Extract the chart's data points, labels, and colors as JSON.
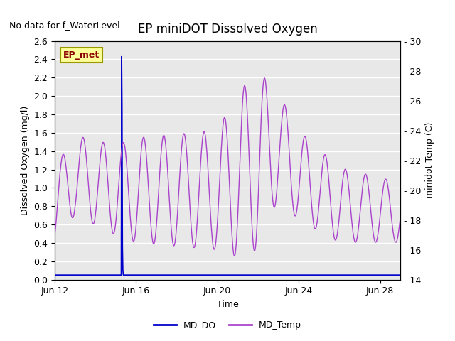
{
  "title": "EP miniDOT Dissolved Oxygen",
  "subtitle": "No data for f_WaterLevel",
  "xlabel": "Time",
  "ylabel_left": "Dissolved Oxygen (mg/l)",
  "ylabel_right": "minidot Temp (C)",
  "ylim_left": [
    0.0,
    2.6
  ],
  "ylim_right": [
    14,
    30
  ],
  "yticks_left": [
    0.0,
    0.2,
    0.4,
    0.6,
    0.8,
    1.0,
    1.2,
    1.4,
    1.6,
    1.8,
    2.0,
    2.2,
    2.4,
    2.6
  ],
  "yticks_right": [
    14,
    16,
    18,
    20,
    22,
    24,
    26,
    28,
    30
  ],
  "xtick_labels": [
    "Jun 12",
    "Jun 16",
    "Jun 20",
    "Jun 24",
    "Jun 28"
  ],
  "xtick_positions": [
    0,
    4,
    8,
    12,
    16
  ],
  "xlim": [
    0,
    17
  ],
  "bg_color": "#e8e8e8",
  "legend_label_do": "MD_DO",
  "legend_label_temp": "MD_Temp",
  "do_color": "#0000cc",
  "temp_color": "#aa44cc",
  "annotation_text": "EP_met",
  "annotation_color": "#8B0000",
  "annotation_bg": "#ffff99",
  "annotation_border": "#999900",
  "title_fontsize": 12,
  "subtitle_fontsize": 9,
  "axis_label_fontsize": 9,
  "tick_fontsize": 9
}
